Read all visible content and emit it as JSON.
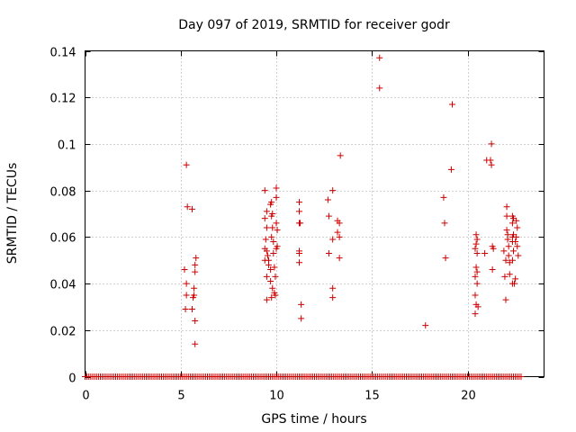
{
  "chart_data": {
    "type": "scatter",
    "title": "Day 097 of 2019, SRMTID for receiver godr",
    "xlabel": "GPS time / hours",
    "ylabel": "SRMTID / TECUs",
    "xlim": [
      0,
      24
    ],
    "ylim": [
      0,
      0.14
    ],
    "x_ticks": [
      0,
      5,
      10,
      15,
      20
    ],
    "x_tick_labels": [
      "0",
      "5",
      "10",
      "15",
      "20"
    ],
    "y_ticks": [
      0,
      0.02,
      0.04,
      0.06,
      0.08,
      0.1,
      0.12,
      0.14
    ],
    "y_tick_labels": [
      "0",
      "0.02",
      "0.04",
      "0.06",
      "0.08",
      "0.1",
      "0.12",
      "0.14"
    ],
    "grid": true,
    "marker": "+",
    "series_color": "#cc0000",
    "zero_band": {
      "x_start": 0.0,
      "x_end": 22.8,
      "step": 0.1,
      "y": 0
    },
    "series": [
      {
        "name": "SRMTID",
        "points": [
          [
            5.3,
            0.091
          ],
          [
            5.35,
            0.073
          ],
          [
            5.6,
            0.072
          ],
          [
            5.2,
            0.046
          ],
          [
            5.3,
            0.04
          ],
          [
            5.3,
            0.035
          ],
          [
            5.25,
            0.029
          ],
          [
            5.6,
            0.029
          ],
          [
            5.65,
            0.034
          ],
          [
            5.7,
            0.035
          ],
          [
            5.7,
            0.038
          ],
          [
            5.75,
            0.048
          ],
          [
            5.75,
            0.045
          ],
          [
            5.8,
            0.051
          ],
          [
            5.75,
            0.024
          ],
          [
            5.75,
            0.014
          ],
          [
            9.4,
            0.08
          ],
          [
            9.5,
            0.071
          ],
          [
            9.4,
            0.068
          ],
          [
            9.5,
            0.064
          ],
          [
            9.45,
            0.059
          ],
          [
            9.4,
            0.055
          ],
          [
            9.5,
            0.054
          ],
          [
            9.55,
            0.052
          ],
          [
            9.6,
            0.05
          ],
          [
            9.4,
            0.05
          ],
          [
            9.6,
            0.048
          ],
          [
            9.7,
            0.046
          ],
          [
            9.5,
            0.043
          ],
          [
            9.7,
            0.041
          ],
          [
            9.8,
            0.038
          ],
          [
            9.75,
            0.034
          ],
          [
            9.5,
            0.033
          ],
          [
            9.7,
            0.074
          ],
          [
            9.75,
            0.075
          ],
          [
            9.8,
            0.07
          ],
          [
            9.75,
            0.069
          ],
          [
            9.8,
            0.064
          ],
          [
            9.75,
            0.06
          ],
          [
            9.85,
            0.058
          ],
          [
            9.85,
            0.053
          ],
          [
            9.9,
            0.047
          ],
          [
            9.95,
            0.043
          ],
          [
            9.9,
            0.036
          ],
          [
            9.95,
            0.035
          ],
          [
            10.0,
            0.081
          ],
          [
            10.0,
            0.077
          ],
          [
            10.0,
            0.066
          ],
          [
            10.05,
            0.063
          ],
          [
            10.0,
            0.055
          ],
          [
            10.05,
            0.056
          ],
          [
            11.2,
            0.075
          ],
          [
            11.2,
            0.071
          ],
          [
            11.2,
            0.066
          ],
          [
            11.25,
            0.066
          ],
          [
            11.2,
            0.054
          ],
          [
            11.2,
            0.053
          ],
          [
            11.2,
            0.049
          ],
          [
            11.3,
            0.031
          ],
          [
            11.3,
            0.025
          ],
          [
            12.7,
            0.076
          ],
          [
            12.75,
            0.069
          ],
          [
            12.95,
            0.08
          ],
          [
            12.95,
            0.059
          ],
          [
            12.95,
            0.038
          ],
          [
            12.95,
            0.034
          ],
          [
            13.2,
            0.062
          ],
          [
            13.2,
            0.067
          ],
          [
            13.3,
            0.066
          ],
          [
            13.3,
            0.06
          ],
          [
            13.3,
            0.051
          ],
          [
            12.75,
            0.053
          ],
          [
            13.35,
            0.095
          ],
          [
            15.4,
            0.137
          ],
          [
            15.4,
            0.124
          ],
          [
            17.8,
            0.022
          ],
          [
            18.75,
            0.077
          ],
          [
            18.8,
            0.066
          ],
          [
            18.85,
            0.051
          ],
          [
            19.2,
            0.117
          ],
          [
            19.15,
            0.089
          ],
          [
            20.45,
            0.061
          ],
          [
            20.5,
            0.059
          ],
          [
            20.45,
            0.057
          ],
          [
            20.4,
            0.055
          ],
          [
            20.5,
            0.053
          ],
          [
            20.45,
            0.047
          ],
          [
            20.5,
            0.045
          ],
          [
            20.4,
            0.043
          ],
          [
            20.5,
            0.04
          ],
          [
            20.4,
            0.035
          ],
          [
            20.45,
            0.031
          ],
          [
            20.4,
            0.027
          ],
          [
            20.55,
            0.03
          ],
          [
            20.9,
            0.053
          ],
          [
            21.0,
            0.093
          ],
          [
            21.2,
            0.093
          ],
          [
            21.25,
            0.091
          ],
          [
            21.25,
            0.1
          ],
          [
            21.3,
            0.056
          ],
          [
            21.35,
            0.055
          ],
          [
            21.3,
            0.046
          ],
          [
            21.9,
            0.054
          ],
          [
            21.95,
            0.043
          ],
          [
            22.0,
            0.033
          ],
          [
            22.0,
            0.05
          ],
          [
            22.05,
            0.073
          ],
          [
            22.05,
            0.069
          ],
          [
            22.05,
            0.063
          ],
          [
            22.1,
            0.061
          ],
          [
            22.1,
            0.059
          ],
          [
            22.15,
            0.056
          ],
          [
            22.15,
            0.052
          ],
          [
            22.2,
            0.049
          ],
          [
            22.2,
            0.044
          ],
          [
            22.35,
            0.069
          ],
          [
            22.4,
            0.068
          ],
          [
            22.35,
            0.066
          ],
          [
            22.35,
            0.06
          ],
          [
            22.35,
            0.058
          ],
          [
            22.4,
            0.054
          ],
          [
            22.35,
            0.05
          ],
          [
            22.35,
            0.04
          ],
          [
            22.45,
            0.04
          ],
          [
            22.4,
            0.061
          ],
          [
            22.5,
            0.058
          ],
          [
            22.55,
            0.067
          ],
          [
            22.6,
            0.064
          ],
          [
            22.55,
            0.06
          ],
          [
            22.6,
            0.056
          ],
          [
            22.65,
            0.052
          ],
          [
            22.5,
            0.042
          ]
        ]
      }
    ]
  }
}
